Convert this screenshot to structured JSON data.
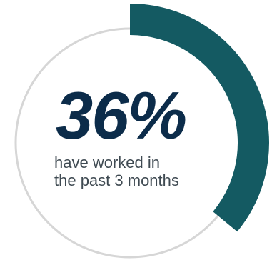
{
  "chart_data": {
    "type": "pie",
    "style": "donut",
    "values": [
      36,
      64
    ],
    "value_label": "36%",
    "caption_lines": [
      "have worked in",
      "the past 3 months"
    ],
    "colors": {
      "filled": "#145a62",
      "track": "#d6d6d6",
      "percent_text": "#0c2c4a",
      "caption_text": "#3f4a52"
    }
  }
}
